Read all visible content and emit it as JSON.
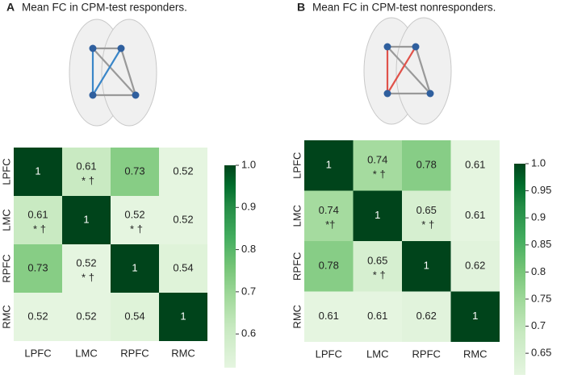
{
  "chart_data": [
    {
      "type": "heatmap",
      "panel": "A",
      "title": "Mean FC in CPM-test responders.",
      "categories": [
        "LPFC",
        "LMC",
        "RPFC",
        "RMC"
      ],
      "values": [
        [
          1,
          0.61,
          0.73,
          0.52
        ],
        [
          0.61,
          1,
          0.52,
          0.52
        ],
        [
          0.73,
          0.52,
          1,
          0.54
        ],
        [
          0.52,
          0.52,
          0.54,
          1
        ]
      ],
      "cell_notes": [
        [
          null,
          "* †",
          null,
          null
        ],
        [
          "* †",
          null,
          "* †",
          null
        ],
        [
          null,
          "* †",
          null,
          null
        ],
        [
          null,
          null,
          null,
          null
        ]
      ],
      "zlim": [
        0.52,
        1.0
      ],
      "zticks": [
        0.6,
        0.7,
        0.8,
        0.9,
        {
          "value": 1.0,
          "label": "1.0"
        }
      ],
      "edge_color": "#3a86c8"
    },
    {
      "type": "heatmap",
      "panel": "B",
      "title": "Mean FC in CPM-test nonresponders.",
      "categories": [
        "LPFC",
        "LMC",
        "RPFC",
        "RMC"
      ],
      "values": [
        [
          1,
          0.74,
          0.78,
          0.61
        ],
        [
          0.74,
          1,
          0.65,
          0.61
        ],
        [
          0.78,
          0.65,
          1,
          0.62
        ],
        [
          0.61,
          0.61,
          0.62,
          1
        ]
      ],
      "cell_notes": [
        [
          null,
          "* †",
          null,
          null
        ],
        [
          "*†",
          null,
          "* †",
          null
        ],
        [
          null,
          "* †",
          null,
          null
        ],
        [
          null,
          null,
          null,
          null
        ]
      ],
      "zlim": [
        0.61,
        1.0
      ],
      "zticks": [
        0.65,
        0.7,
        0.75,
        0.8,
        0.85,
        0.9,
        0.95,
        {
          "value": 1.0,
          "label": "1.0"
        }
      ],
      "edge_color": "#e0524a"
    }
  ]
}
